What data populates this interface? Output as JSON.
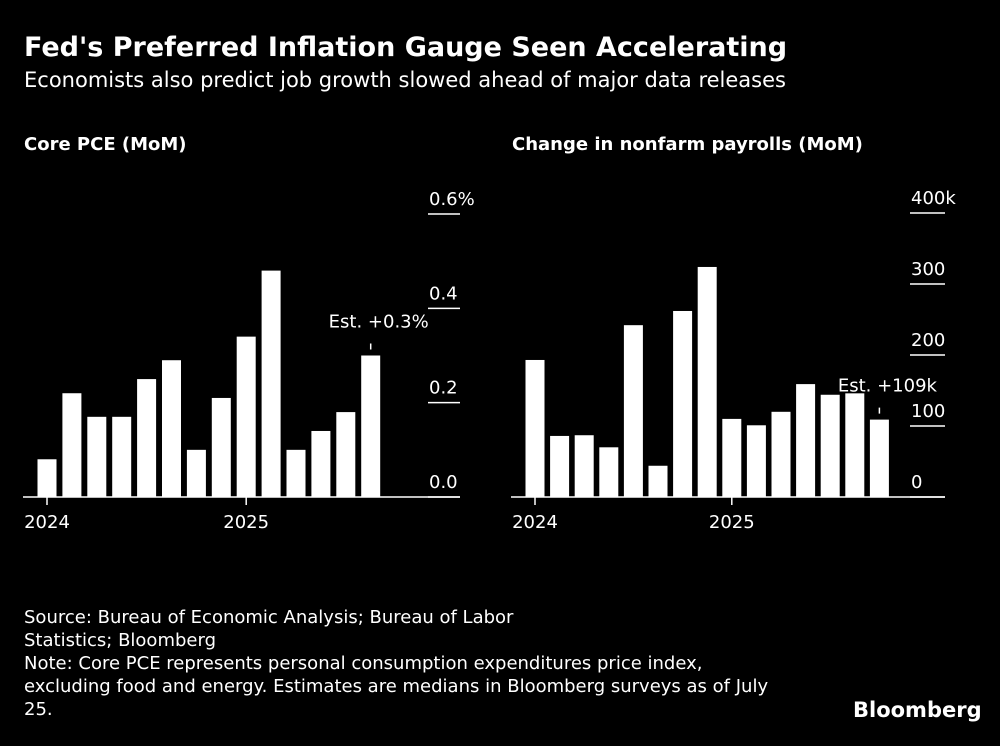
{
  "header": {
    "title": "Fed's Preferred Inflation Gauge Seen Accelerating",
    "subtitle": "Economists also predict job growth slowed ahead of major data releases"
  },
  "chart_data": [
    {
      "type": "bar",
      "title": "Core PCE (MoM)",
      "color": "#ffffff",
      "categories": [
        "2024",
        null,
        null,
        null,
        null,
        null,
        null,
        null,
        "2025",
        null,
        null,
        null,
        null,
        null
      ],
      "values": [
        0.08,
        0.22,
        0.17,
        0.17,
        0.25,
        0.29,
        0.1,
        0.21,
        0.34,
        0.48,
        0.1,
        0.14,
        0.18,
        0.3
      ],
      "annotation": "Est. +0.3%",
      "ylim": [
        0,
        0.6
      ],
      "yticks": [
        {
          "value": 0,
          "label": "0.0"
        },
        0.2,
        0.4,
        {
          "value": 0.6,
          "label": "0.6%"
        }
      ]
    },
    {
      "type": "bar",
      "title": "Change in nonfarm payrolls (MoM)",
      "color": "#ffffff",
      "categories": [
        "2024",
        null,
        null,
        null,
        null,
        null,
        null,
        null,
        "2025",
        null,
        null,
        null,
        null,
        null,
        null
      ],
      "values": [
        193,
        86,
        87,
        70,
        242,
        44,
        262,
        324,
        110,
        101,
        120,
        159,
        144,
        146,
        109
      ],
      "annotation": "Est. +109k",
      "ylim": [
        0,
        400
      ],
      "yticks": [
        0,
        100,
        200,
        300,
        {
          "value": 400,
          "label": "400k"
        }
      ]
    }
  ],
  "footer": {
    "source": "Source: Bureau of Economic Analysis; Bureau of Labor Statistics; Bloomberg",
    "note": "Note: Core PCE represents personal consumption expenditures price index, excluding food and energy. Estimates are medians in Bloomberg surveys as of July 25.",
    "brand": "Bloomberg"
  }
}
